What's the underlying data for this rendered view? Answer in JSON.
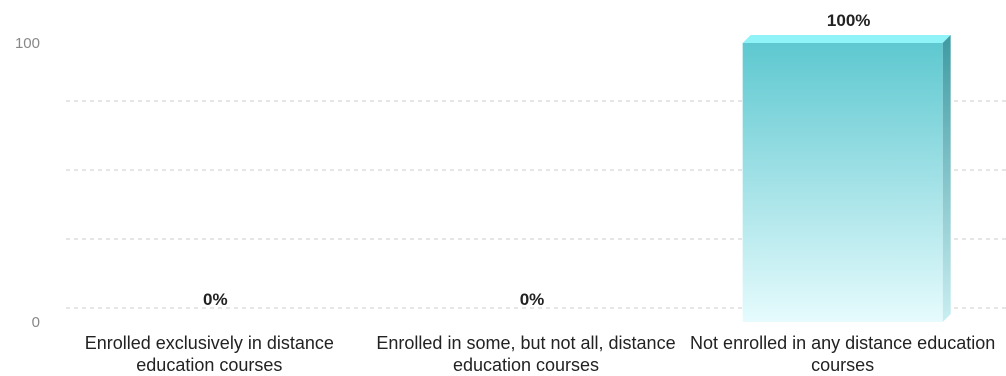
{
  "chart_data": {
    "type": "bar3d",
    "categories": [
      "Enrolled exclusively in distance education courses",
      "Enrolled in some, but not all, distance education courses",
      "Not enrolled in any distance education courses"
    ],
    "values": [
      0,
      0,
      100
    ],
    "value_labels": [
      "0%",
      "0%",
      "100%"
    ],
    "color": "#5ec8d0",
    "ylim": [
      0,
      100
    ],
    "yticks": [
      0,
      100
    ],
    "grid": true
  }
}
